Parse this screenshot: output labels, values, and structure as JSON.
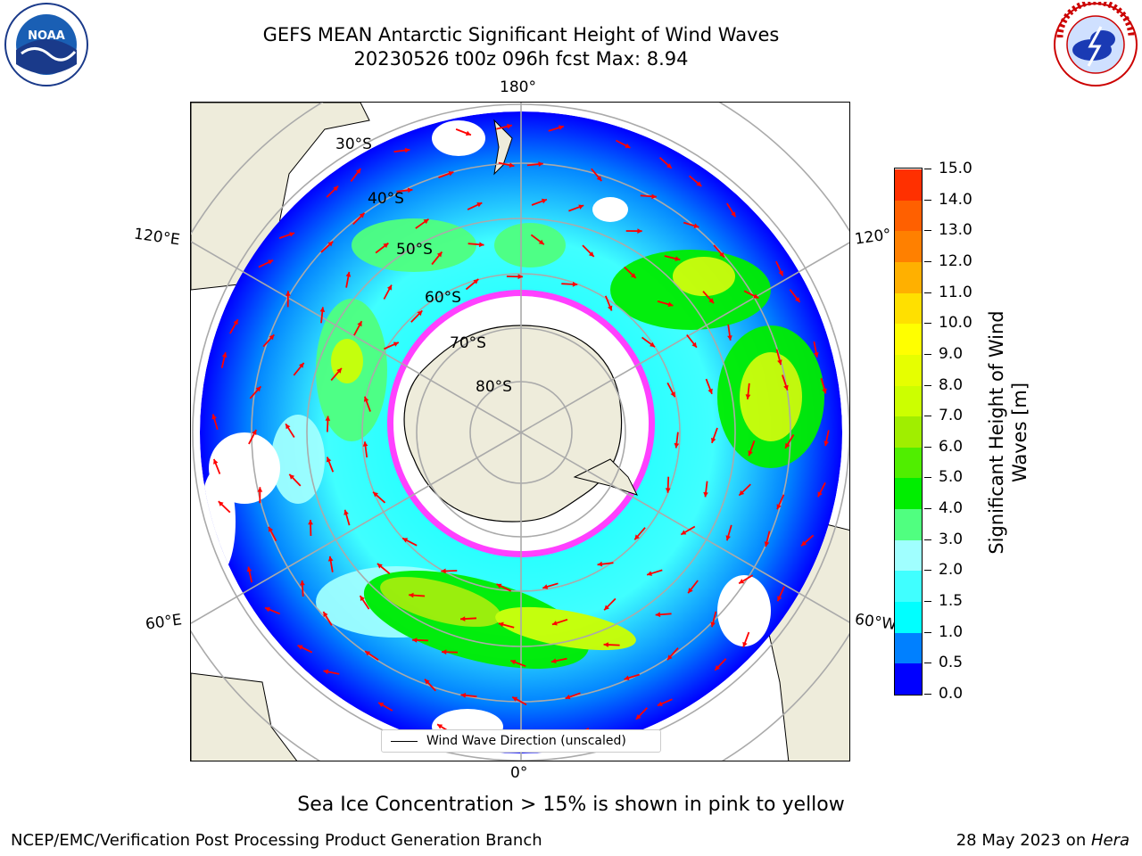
{
  "title": {
    "line1": "GEFS MEAN Antarctic Significant Height of Wind Waves",
    "line2": "20230526 t00z 096h fcst   Max: 8.94"
  },
  "logos": {
    "noaa": "NOAA",
    "nws": "NATIONAL WEATHER SERVICE"
  },
  "map": {
    "longitude_labels": {
      "top": "180°",
      "bottom": "0°",
      "left_upper": "120°E",
      "left_lower": "60°E",
      "right_upper": "120°",
      "right_lower": "60°W"
    },
    "latitude_labels": [
      "30°S",
      "40°S",
      "50°S",
      "60°S",
      "70°S",
      "80°S"
    ],
    "legend_label": "Wind Wave Direction (unscaled)",
    "land_color": "#eeecdb",
    "arrow_color": "#ff0000"
  },
  "colorbar": {
    "label": "Significant Height of Wind Waves [m]",
    "label_line1": "Significant Height of Wind",
    "label_line2": "Waves [m]",
    "ticks": [
      "15.0",
      "14.0",
      "13.0",
      "12.0",
      "11.0",
      "10.0",
      "9.0",
      "8.0",
      "7.0",
      "6.0",
      "5.0",
      "4.0",
      "3.0",
      "2.0",
      "1.5",
      "1.0",
      "0.5",
      "0.0"
    ],
    "colors_bottom_to_top": [
      "#0000ff",
      "#0080ff",
      "#00ffff",
      "#40ffff",
      "#a0ffff",
      "#50ff80",
      "#00ee00",
      "#50ee00",
      "#a0ee00",
      "#ccff00",
      "#e6ff00",
      "#ffff00",
      "#ffe000",
      "#ffb000",
      "#ff8000",
      "#ff6000",
      "#ff3000",
      "#ff0000"
    ]
  },
  "note": "Sea Ice Concentration > 15% is shown in pink to yellow",
  "footer": {
    "left": "NCEP/EMC/Verification Post Processing Product Generation Branch",
    "right_prefix": "28 May 2023 on ",
    "right_italic": "Hera"
  }
}
